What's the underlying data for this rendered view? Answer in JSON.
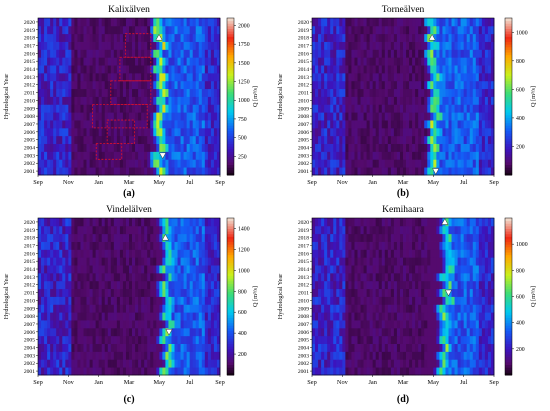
{
  "figure": {
    "panels": [
      "a",
      "b",
      "c",
      "d"
    ]
  },
  "chart_data": [
    {
      "type": "heatmap",
      "panel": "(a)",
      "title": "Kalixälven",
      "ylabel": "Hydrological Year",
      "x_ticks": [
        "Sep",
        "Nov",
        "Jan",
        "Mar",
        "May",
        "Jul",
        "Sep"
      ],
      "y_ticks": [
        "2001",
        "2002",
        "2003",
        "2004",
        "2005",
        "2006",
        "2007",
        "2008",
        "2009",
        "2010",
        "2011",
        "2012",
        "2013",
        "2014",
        "2015",
        "2016",
        "2017",
        "2018",
        "2019",
        "2020"
      ],
      "colorbar_label": "Q [m³/s]",
      "colorbar_ticks": [
        250,
        500,
        750,
        1000,
        1250,
        1500,
        1750,
        2000
      ],
      "colorbar_range": [
        0,
        2100
      ],
      "markers": [
        {
          "shape": "triangle-up",
          "year": 2018
        },
        {
          "shape": "triangle-down",
          "year": 2003
        }
      ],
      "annotations": [
        "red dashed boxes marking winter ice-affected periods"
      ]
    },
    {
      "type": "heatmap",
      "panel": "(b)",
      "title": "Torneälven",
      "ylabel": "Hydrological Year",
      "x_ticks": [
        "Sep",
        "Nov",
        "Jan",
        "Mar",
        "May",
        "Jul",
        "Sep"
      ],
      "y_ticks": [
        "2001",
        "2002",
        "2003",
        "2004",
        "2005",
        "2006",
        "2007",
        "2008",
        "2009",
        "2010",
        "2011",
        "2012",
        "2013",
        "2014",
        "2015",
        "2016",
        "2017",
        "2018",
        "2019",
        "2020"
      ],
      "colorbar_label": "Q [m³/s]",
      "colorbar_ticks": [
        200,
        400,
        600,
        800,
        1000
      ],
      "colorbar_range": [
        0,
        1100
      ],
      "markers": [
        {
          "shape": "triangle-up",
          "year": 2018
        },
        {
          "shape": "triangle-down",
          "year": 2001
        }
      ]
    },
    {
      "type": "heatmap",
      "panel": "(c)",
      "title": "Vindelälven",
      "ylabel": "Hydrological Year",
      "x_ticks": [
        "Sep",
        "Nov",
        "Jan",
        "Mar",
        "May",
        "Jul",
        "Sep"
      ],
      "y_ticks": [
        "2001",
        "2002",
        "2003",
        "2004",
        "2005",
        "2006",
        "2007",
        "2008",
        "2009",
        "2010",
        "2011",
        "2012",
        "2013",
        "2014",
        "2015",
        "2016",
        "2017",
        "2018",
        "2019",
        "2020"
      ],
      "colorbar_label": "Q [m³/s]",
      "colorbar_ticks": [
        200,
        400,
        600,
        800,
        1000,
        1200,
        1400
      ],
      "colorbar_range": [
        0,
        1500
      ],
      "markers": [
        {
          "shape": "triangle-up",
          "year": 2018
        },
        {
          "shape": "triangle-down",
          "year": 2006
        }
      ]
    },
    {
      "type": "heatmap",
      "panel": "(d)",
      "title": "Kemihaara",
      "ylabel": "Hydrological Year",
      "x_ticks": [
        "Sep",
        "Nov",
        "Jan",
        "Mar",
        "May",
        "Jul",
        "Sep"
      ],
      "y_ticks": [
        "2001",
        "2002",
        "2003",
        "2004",
        "2005",
        "2006",
        "2007",
        "2008",
        "2009",
        "2010",
        "2011",
        "2012",
        "2013",
        "2014",
        "2015",
        "2016",
        "2017",
        "2018",
        "2019",
        "2020"
      ],
      "colorbar_label": "Q [m³/s]",
      "colorbar_ticks": [
        200,
        400,
        600,
        800,
        1000
      ],
      "colorbar_range": [
        0,
        1200
      ],
      "markers": [
        {
          "shape": "triangle-up",
          "year": 2020
        },
        {
          "shape": "triangle-down",
          "year": 2011
        }
      ]
    }
  ]
}
